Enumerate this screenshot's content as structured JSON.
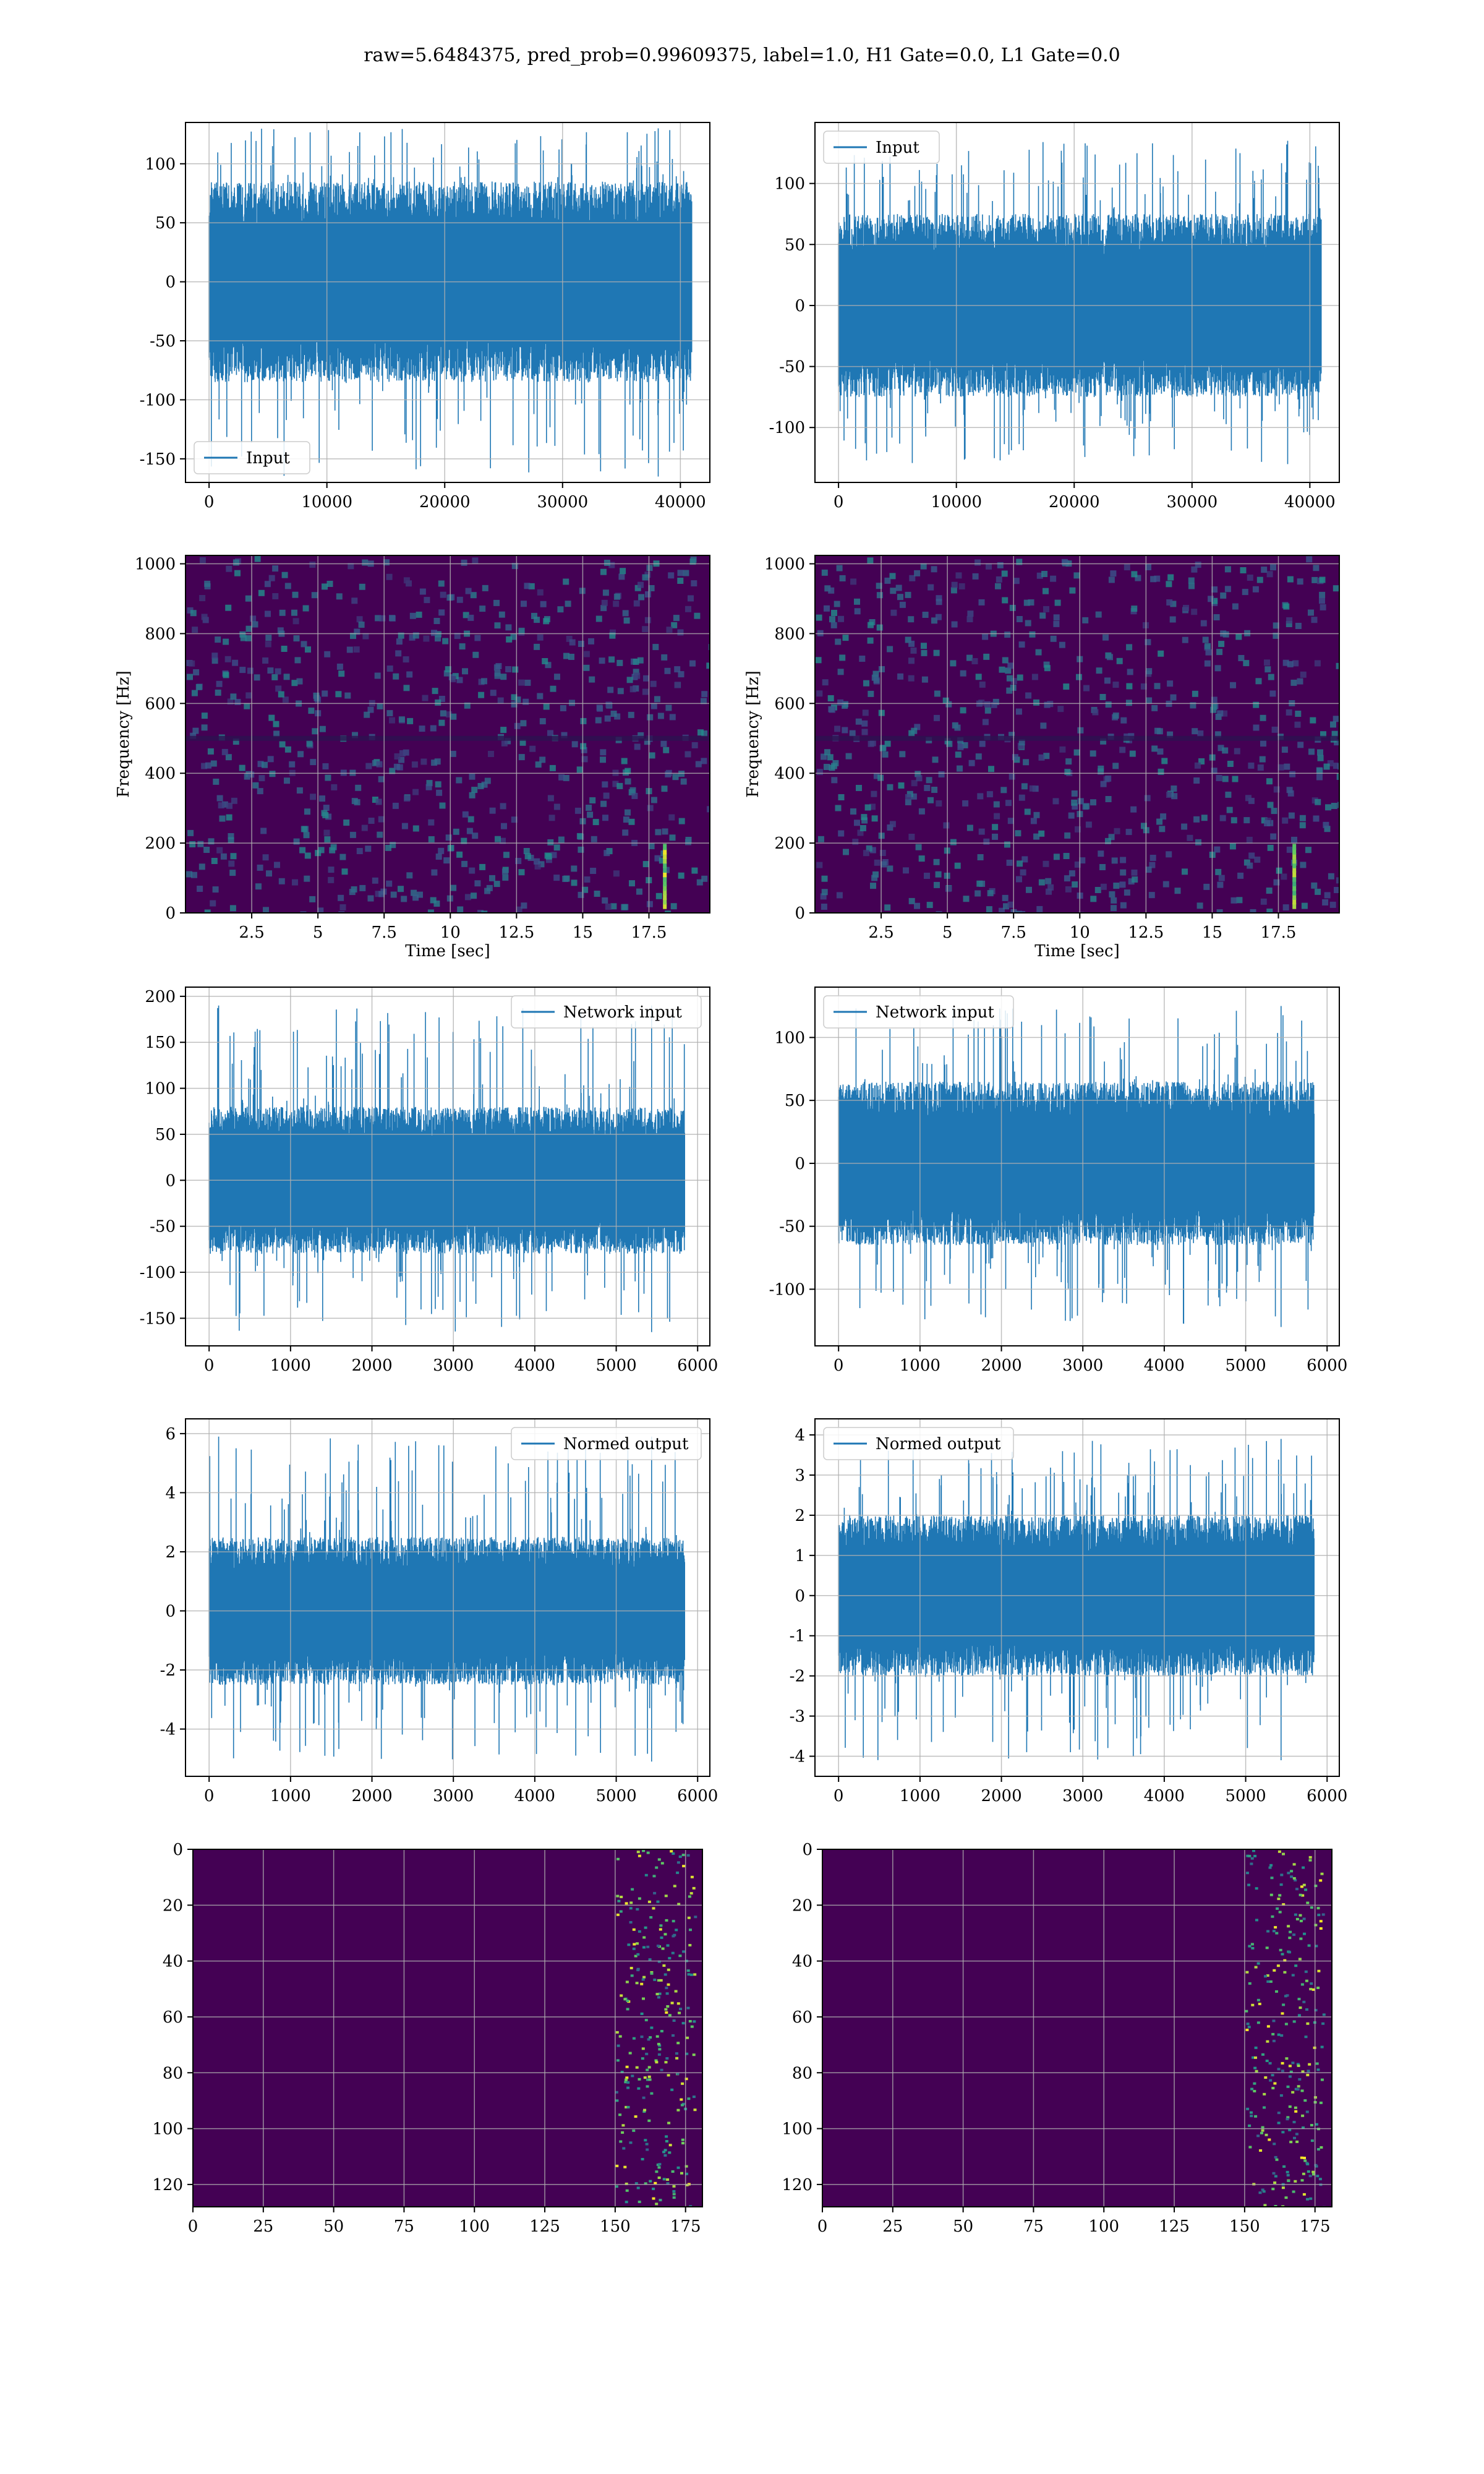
{
  "figure": {
    "title": "raw=5.6484375, pred_prob=0.99609375, label=1.0, H1 Gate=0.0, L1 Gate=0.0",
    "colors": {
      "line": "#1f77b4",
      "grid": "#b0b0b0",
      "heat_low": "#440154",
      "heat_mid": "#21918c",
      "heat_high": "#fde725"
    }
  },
  "chart_data": [
    {
      "id": "input-h1",
      "type": "line",
      "legend": "Input",
      "legend_loc": "lower-left",
      "xlim": [
        -2000,
        42500
      ],
      "ylim": [
        -170,
        135
      ],
      "xticks": [
        0,
        10000,
        20000,
        30000,
        40000
      ],
      "yticks": [
        -150,
        -100,
        -50,
        0,
        50,
        100
      ],
      "signal": {
        "n": 40960,
        "x_start": 0,
        "x_end": 40960,
        "band_low": -85,
        "band_high": 85,
        "spike_max": 130,
        "spike_min": -165
      },
      "grid": true
    },
    {
      "id": "input-l1",
      "type": "line",
      "legend": "Input",
      "legend_loc": "upper-left",
      "xlim": [
        -2000,
        42500
      ],
      "ylim": [
        -145,
        150
      ],
      "xticks": [
        0,
        10000,
        20000,
        30000,
        40000
      ],
      "yticks": [
        -100,
        -50,
        0,
        50,
        100
      ],
      "signal": {
        "n": 40960,
        "x_start": 0,
        "x_end": 40960,
        "band_low": -75,
        "band_high": 75,
        "spike_max": 135,
        "spike_min": -130
      },
      "grid": true
    },
    {
      "id": "spectrogram-h1",
      "type": "heatmap",
      "xlabel": "Time [sec]",
      "ylabel": "Frequency [Hz]",
      "xlim": [
        0,
        19.8
      ],
      "ylim": [
        0,
        1024
      ],
      "xticks": [
        2.5,
        5.0,
        7.5,
        10.0,
        12.5,
        15.0,
        17.5
      ],
      "yticks": [
        0,
        200,
        400,
        600,
        800,
        1000
      ],
      "grid": true
    },
    {
      "id": "spectrogram-l1",
      "type": "heatmap",
      "xlabel": "Time [sec]",
      "ylabel": "Frequency [Hz]",
      "xlim": [
        0,
        19.8
      ],
      "ylim": [
        0,
        1024
      ],
      "xticks": [
        2.5,
        5.0,
        7.5,
        10.0,
        12.5,
        15.0,
        17.5
      ],
      "yticks": [
        0,
        200,
        400,
        600,
        800,
        1000
      ],
      "grid": true
    },
    {
      "id": "network-input-h1",
      "type": "line",
      "legend": "Network input",
      "legend_loc": "upper-right",
      "xlim": [
        -290,
        6150
      ],
      "ylim": [
        -180,
        210
      ],
      "xticks": [
        0,
        1000,
        2000,
        3000,
        4000,
        5000,
        6000
      ],
      "yticks": [
        -150,
        -100,
        -50,
        0,
        50,
        100,
        150,
        200
      ],
      "signal": {
        "n": 5840,
        "x_start": 0,
        "x_end": 5840,
        "band_low": -80,
        "band_high": 80,
        "spike_max": 190,
        "spike_min": -165
      },
      "grid": true
    },
    {
      "id": "network-input-l1",
      "type": "line",
      "legend": "Network input",
      "legend_loc": "upper-left",
      "xlim": [
        -290,
        6150
      ],
      "ylim": [
        -145,
        140
      ],
      "xticks": [
        0,
        1000,
        2000,
        3000,
        4000,
        5000,
        6000
      ],
      "yticks": [
        -100,
        -50,
        0,
        50,
        100
      ],
      "signal": {
        "n": 5840,
        "x_start": 0,
        "x_end": 5840,
        "band_low": -65,
        "band_high": 65,
        "spike_max": 125,
        "spike_min": -130
      },
      "grid": true
    },
    {
      "id": "normed-output-h1",
      "type": "line",
      "legend": "Normed output",
      "legend_loc": "upper-right",
      "xlim": [
        -290,
        6150
      ],
      "ylim": [
        -5.6,
        6.5
      ],
      "xticks": [
        0,
        1000,
        2000,
        3000,
        4000,
        5000,
        6000
      ],
      "yticks": [
        -4,
        -2,
        0,
        2,
        4,
        6
      ],
      "signal": {
        "n": 5840,
        "x_start": 0,
        "x_end": 5840,
        "band_low": -2.5,
        "band_high": 2.5,
        "spike_max": 5.9,
        "spike_min": -5.1
      },
      "grid": true
    },
    {
      "id": "normed-output-l1",
      "type": "line",
      "legend": "Normed output",
      "legend_loc": "upper-left",
      "xlim": [
        -290,
        6150
      ],
      "ylim": [
        -4.5,
        4.4
      ],
      "xticks": [
        0,
        1000,
        2000,
        3000,
        4000,
        5000,
        6000
      ],
      "yticks": [
        -4,
        -3,
        -2,
        -1,
        0,
        1,
        2,
        3,
        4
      ],
      "signal": {
        "n": 5840,
        "x_start": 0,
        "x_end": 5840,
        "band_low": -2,
        "band_high": 2,
        "spike_max": 3.9,
        "spike_min": -4.1
      },
      "grid": true
    },
    {
      "id": "feature-map-h1",
      "type": "heatmap",
      "xlim": [
        0,
        181
      ],
      "ylim": [
        128,
        0
      ],
      "xticks": [
        0,
        25,
        50,
        75,
        100,
        125,
        150,
        175
      ],
      "yticks": [
        0,
        20,
        40,
        60,
        80,
        100,
        120
      ],
      "grid": true
    },
    {
      "id": "feature-map-l1",
      "type": "heatmap",
      "xlim": [
        0,
        181
      ],
      "ylim": [
        128,
        0
      ],
      "xticks": [
        0,
        25,
        50,
        75,
        100,
        125,
        150,
        175
      ],
      "yticks": [
        0,
        20,
        40,
        60,
        80,
        100,
        120
      ],
      "grid": true
    }
  ]
}
